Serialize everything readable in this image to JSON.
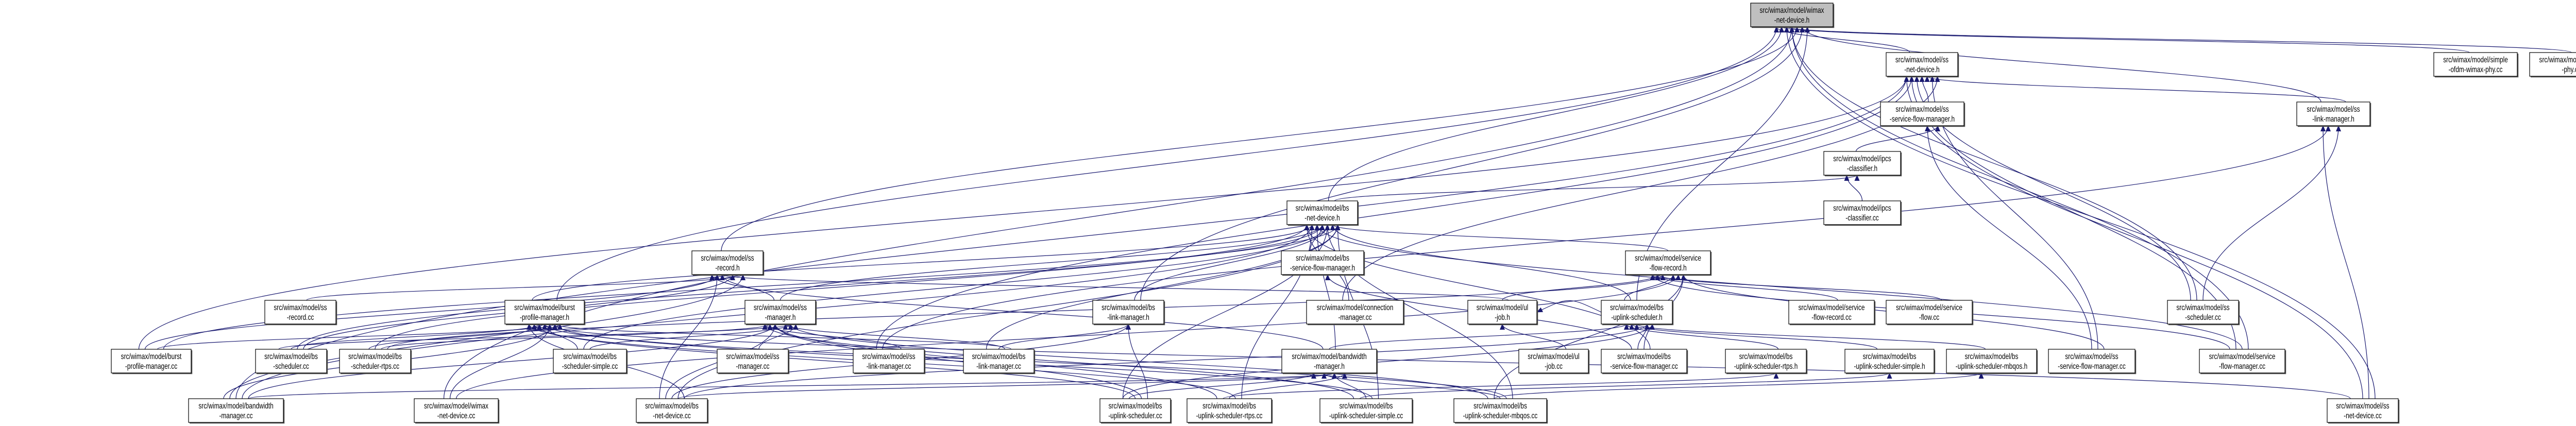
{
  "graph": {
    "edge_color": "#191970",
    "root_fill": "#bfbfbf",
    "node_fill": "#ffffff",
    "root": "root",
    "nodes": [
      {
        "id": "root",
        "line1": "src/wimax/model/wimax",
        "line2": "-net-device.h"
      },
      {
        "id": "ssnd",
        "line1": "src/wimax/model/ss",
        "line2": "-net-device.h"
      },
      {
        "id": "sofdm",
        "line1": "src/wimax/model/simple",
        "line2": "-ofdm-wimax-phy.cc"
      },
      {
        "id": "wphy",
        "line1": "src/wimax/model/wimax",
        "line2": "-phy.cc"
      },
      {
        "id": "ssfm_h",
        "line1": "src/wimax/model/ss",
        "line2": "-service-flow-manager.h"
      },
      {
        "id": "sslm_h",
        "line1": "src/wimax/model/ss",
        "line2": "-link-manager.h"
      },
      {
        "id": "ipcs_h",
        "line1": "src/wimax/model/ipcs",
        "line2": "-classifier.h"
      },
      {
        "id": "ipcs_cc",
        "line1": "src/wimax/model/ipcs",
        "line2": "-classifier.cc"
      },
      {
        "id": "bsnd_h",
        "line1": "src/wimax/model/bs",
        "line2": "-net-device.h"
      },
      {
        "id": "ssrec_h",
        "line1": "src/wimax/model/ss",
        "line2": "-record.h"
      },
      {
        "id": "bssfm_h",
        "line1": "src/wimax/model/bs",
        "line2": "-service-flow-manager.h"
      },
      {
        "id": "sfr_h",
        "line1": "src/wimax/model/service",
        "line2": "-flow-record.h"
      },
      {
        "id": "ssrec_cc",
        "line1": "src/wimax/model/ss",
        "line2": "-record.cc"
      },
      {
        "id": "bpm_h",
        "line1": "src/wimax/model/burst",
        "line2": "-profile-manager.h"
      },
      {
        "id": "ssm_h",
        "line1": "src/wimax/model/ss",
        "line2": "-manager.h"
      },
      {
        "id": "bslm_h",
        "line1": "src/wimax/model/bs",
        "line2": "-link-manager.h"
      },
      {
        "id": "cm_cc",
        "line1": "src/wimax/model/connection",
        "line2": "-manager.cc"
      },
      {
        "id": "ulj_h",
        "line1": "src/wimax/model/ul",
        "line2": "-job.h"
      },
      {
        "id": "bsus_h",
        "line1": "src/wimax/model/bs",
        "line2": "-uplink-scheduler.h"
      },
      {
        "id": "sfr_cc",
        "line1": "src/wimax/model/service",
        "line2": "-flow-record.cc"
      },
      {
        "id": "sf_cc",
        "line1": "src/wimax/model/service",
        "line2": "-flow.cc"
      },
      {
        "id": "ssch_cc",
        "line1": "src/wimax/model/ss",
        "line2": "-scheduler.cc"
      },
      {
        "id": "bpm_cc",
        "line1": "src/wimax/model/burst",
        "line2": "-profile-manager.cc"
      },
      {
        "id": "bssch_cc",
        "line1": "src/wimax/model/bs",
        "line2": "-scheduler.cc"
      },
      {
        "id": "bsschr_cc",
        "line1": "src/wimax/model/bs",
        "line2": "-scheduler-rtps.cc"
      },
      {
        "id": "bsschs_cc",
        "line1": "src/wimax/model/bs",
        "line2": "-scheduler-simple.cc"
      },
      {
        "id": "ssm_cc",
        "line1": "src/wimax/model/ss",
        "line2": "-manager.cc"
      },
      {
        "id": "sslm_cc",
        "line1": "src/wimax/model/ss",
        "line2": "-link-manager.cc"
      },
      {
        "id": "bslm_cc",
        "line1": "src/wimax/model/bs",
        "line2": "-link-manager.cc"
      },
      {
        "id": "bwm_h",
        "line1": "src/wimax/model/bandwidth",
        "line2": "-manager.h"
      },
      {
        "id": "ulj_cc",
        "line1": "src/wimax/model/ul",
        "line2": "-job.cc"
      },
      {
        "id": "bssfm_cc",
        "line1": "src/wimax/model/bs",
        "line2": "-service-flow-manager.cc"
      },
      {
        "id": "bsusr_h",
        "line1": "src/wimax/model/bs",
        "line2": "-uplink-scheduler-rtps.h"
      },
      {
        "id": "bsuss_h",
        "line1": "src/wimax/model/bs",
        "line2": "-uplink-scheduler-simple.h"
      },
      {
        "id": "bsusm_h",
        "line1": "src/wimax/model/bs",
        "line2": "-uplink-scheduler-mbqos.h"
      },
      {
        "id": "sssfm_cc",
        "line1": "src/wimax/model/ss",
        "line2": "-service-flow-manager.cc"
      },
      {
        "id": "sfm_cc",
        "line1": "src/wimax/model/service",
        "line2": "-flow-manager.cc"
      },
      {
        "id": "bwm_cc",
        "line1": "src/wimax/model/bandwidth",
        "line2": "-manager.cc"
      },
      {
        "id": "wnd_cc",
        "line1": "src/wimax/model/wimax",
        "line2": "-net-device.cc"
      },
      {
        "id": "bsnd_cc",
        "line1": "src/wimax/model/bs",
        "line2": "-net-device.cc"
      },
      {
        "id": "bsus_cc",
        "line1": "src/wimax/model/bs",
        "line2": "-uplink-scheduler.cc"
      },
      {
        "id": "bsusr_cc",
        "line1": "src/wimax/model/bs",
        "line2": "-uplink-scheduler-rtps.cc"
      },
      {
        "id": "bsuss_cc",
        "line1": "src/wimax/model/bs",
        "line2": "-uplink-scheduler-simple.cc"
      },
      {
        "id": "bsusm_cc",
        "line1": "src/wimax/model/bs",
        "line2": "-uplink-scheduler-mbqos.cc"
      },
      {
        "id": "ssnd_cc",
        "line1": "src/wimax/model/ss",
        "line2": "-net-device.cc"
      }
    ],
    "edges": [
      [
        "ssnd",
        "root"
      ],
      [
        "sofdm",
        "root"
      ],
      [
        "wphy",
        "root"
      ],
      [
        "ssfm_h",
        "ssnd"
      ],
      [
        "sslm_h",
        "ssnd"
      ],
      [
        "sslm_h",
        "root"
      ],
      [
        "ipcs_h",
        "ssfm_h"
      ],
      [
        "ipcs_cc",
        "ipcs_h"
      ],
      [
        "bsnd_h",
        "root"
      ],
      [
        "bsnd_h",
        "ipcs_h"
      ],
      [
        "bssfm_h",
        "bsnd_h"
      ],
      [
        "ssrec_h",
        "root"
      ],
      [
        "sfr_h",
        "bsnd_h"
      ],
      [
        "ssrec_cc",
        "ssrec_h"
      ],
      [
        "bpm_h",
        "root"
      ],
      [
        "bpm_h",
        "bsnd_h"
      ],
      [
        "ssm_h",
        "ssrec_h"
      ],
      [
        "ssm_h",
        "bsnd_h"
      ],
      [
        "bslm_h",
        "bsnd_h"
      ],
      [
        "bslm_h",
        "root"
      ],
      [
        "cm_cc",
        "ssnd"
      ],
      [
        "cm_cc",
        "bsnd_h"
      ],
      [
        "ulj_h",
        "sfr_h"
      ],
      [
        "ulj_h",
        "ssrec_h"
      ],
      [
        "bsus_h",
        "ulj_h"
      ],
      [
        "bsus_h",
        "sfr_h"
      ],
      [
        "bsus_h",
        "bsnd_h"
      ],
      [
        "bsus_h",
        "root"
      ],
      [
        "sfr_cc",
        "sfr_h"
      ],
      [
        "sf_cc",
        "sfr_h"
      ],
      [
        "ssch_cc",
        "ssnd"
      ],
      [
        "ssch_cc",
        "root"
      ],
      [
        "ssch_cc",
        "sslm_h"
      ],
      [
        "bpm_cc",
        "bpm_h"
      ],
      [
        "bpm_cc",
        "bsnd_h"
      ],
      [
        "bpm_cc",
        "ssnd"
      ],
      [
        "bpm_cc",
        "ssrec_h"
      ],
      [
        "bssch_cc",
        "bpm_h"
      ],
      [
        "bssch_cc",
        "bsnd_h"
      ],
      [
        "bssch_cc",
        "ssrec_h"
      ],
      [
        "bssch_cc",
        "ssm_h"
      ],
      [
        "bsschr_cc",
        "bpm_h"
      ],
      [
        "bsschr_cc",
        "bsnd_h"
      ],
      [
        "bsschr_cc",
        "ssm_h"
      ],
      [
        "bsschr_cc",
        "sfr_h"
      ],
      [
        "bsschs_cc",
        "bpm_h"
      ],
      [
        "bsschs_cc",
        "bsnd_h"
      ],
      [
        "bsschs_cc",
        "ssm_h"
      ],
      [
        "ssm_cc",
        "ssm_h"
      ],
      [
        "sslm_cc",
        "ssm_h"
      ],
      [
        "sslm_cc",
        "ssnd"
      ],
      [
        "sslm_cc",
        "sslm_h"
      ],
      [
        "bslm_cc",
        "bslm_h"
      ],
      [
        "bslm_cc",
        "ssm_h"
      ],
      [
        "bslm_cc",
        "bpm_h"
      ],
      [
        "bslm_cc",
        "bsnd_h"
      ],
      [
        "bwm_h",
        "ssrec_h"
      ],
      [
        "bwm_h",
        "bsus_h"
      ],
      [
        "bwm_h",
        "bsnd_h"
      ],
      [
        "ulj_cc",
        "ulj_h"
      ],
      [
        "bssfm_cc",
        "bssfm_h"
      ],
      [
        "bssfm_cc",
        "bsus_h"
      ],
      [
        "bssfm_cc",
        "sfr_h"
      ],
      [
        "bssfm_cc",
        "bsnd_h"
      ],
      [
        "bsusr_h",
        "bsus_h"
      ],
      [
        "bsuss_h",
        "bsus_h"
      ],
      [
        "bsusm_h",
        "bsus_h"
      ],
      [
        "sssfm_cc",
        "ssfm_h"
      ],
      [
        "sssfm_cc",
        "ssnd"
      ],
      [
        "sssfm_cc",
        "sfr_h"
      ],
      [
        "sfm_cc",
        "sfr_h"
      ],
      [
        "sfm_cc",
        "ssnd"
      ],
      [
        "sfm_cc",
        "bsnd_h"
      ],
      [
        "sfm_cc",
        "root"
      ],
      [
        "bwm_cc",
        "bwm_h"
      ],
      [
        "bwm_cc",
        "bpm_h"
      ],
      [
        "bwm_cc",
        "ssrec_h"
      ],
      [
        "bwm_cc",
        "ssnd"
      ],
      [
        "bwm_cc",
        "bsnd_h"
      ],
      [
        "bwm_cc",
        "ssm_h"
      ],
      [
        "wnd_cc",
        "root"
      ],
      [
        "wnd_cc",
        "bpm_h"
      ],
      [
        "wnd_cc",
        "sfr_h"
      ],
      [
        "bsnd_cc",
        "bsnd_h"
      ],
      [
        "bsnd_cc",
        "bpm_h"
      ],
      [
        "bsnd_cc",
        "ssrec_h"
      ],
      [
        "bsnd_cc",
        "ssm_h"
      ],
      [
        "bsnd_cc",
        "bslm_h"
      ],
      [
        "bsnd_cc",
        "bwm_h"
      ],
      [
        "bsnd_cc",
        "bsus_h"
      ],
      [
        "bsus_cc",
        "bsus_h"
      ],
      [
        "bsus_cc",
        "bwm_h"
      ],
      [
        "bsus_cc",
        "bpm_h"
      ],
      [
        "bsus_cc",
        "ssm_h"
      ],
      [
        "bsus_cc",
        "bslm_h"
      ],
      [
        "bsus_cc",
        "bsnd_h"
      ],
      [
        "bsusr_cc",
        "bsusr_h"
      ],
      [
        "bsusr_cc",
        "bwm_h"
      ],
      [
        "bsusr_cc",
        "bpm_h"
      ],
      [
        "bsusr_cc",
        "bsnd_h"
      ],
      [
        "bsusr_cc",
        "ssm_h"
      ],
      [
        "bsuss_cc",
        "bsuss_h"
      ],
      [
        "bsuss_cc",
        "bwm_h"
      ],
      [
        "bsuss_cc",
        "bpm_h"
      ],
      [
        "bsuss_cc",
        "bsnd_h"
      ],
      [
        "bsuss_cc",
        "ssm_h"
      ],
      [
        "bsusm_cc",
        "bsusm_h"
      ],
      [
        "bsusm_cc",
        "bwm_h"
      ],
      [
        "bsusm_cc",
        "bpm_h"
      ],
      [
        "bsusm_cc",
        "bsnd_h"
      ],
      [
        "bsusm_cc",
        "ssm_h"
      ],
      [
        "bsusm_cc",
        "sfr_h"
      ],
      [
        "ssnd_cc",
        "ssnd"
      ],
      [
        "ssnd_cc",
        "sslm_h"
      ],
      [
        "ssnd_cc",
        "root"
      ],
      [
        "ssnd_cc",
        "bpm_h"
      ]
    ]
  }
}
